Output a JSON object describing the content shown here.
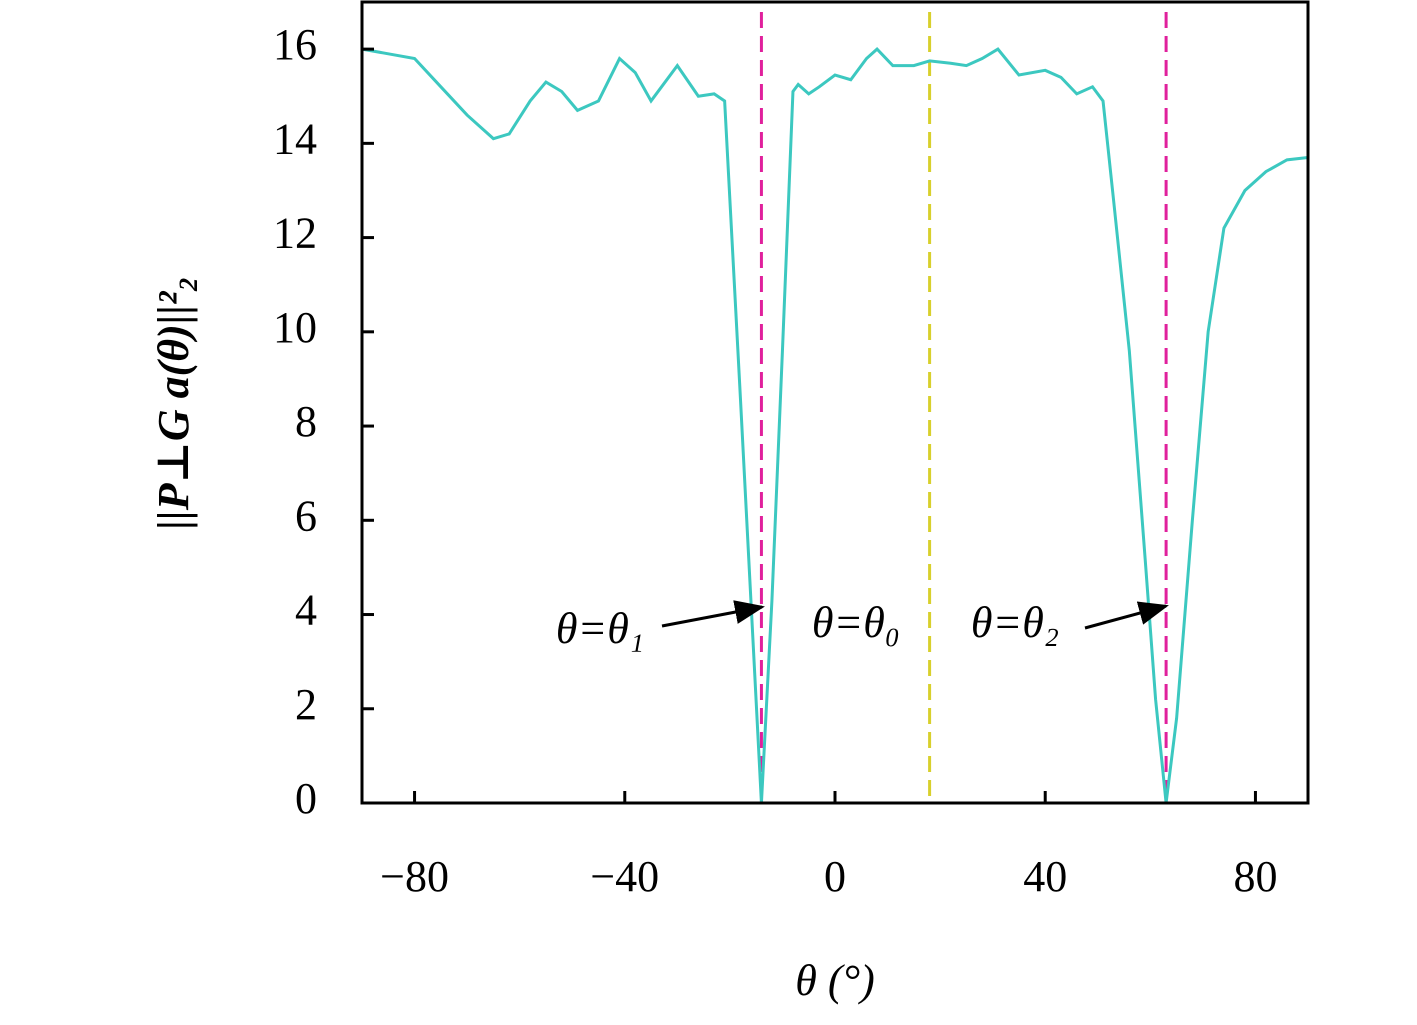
{
  "chart_data": {
    "type": "line",
    "x_label": "θ (°)",
    "y_label": "||P⊥G a(θ)||²₂",
    "xlim": [
      -90,
      90
    ],
    "ylim": [
      0,
      17
    ],
    "xticks": [
      {
        "value": -80,
        "label": "−80"
      },
      {
        "value": -40,
        "label": "−40"
      },
      0,
      40,
      80
    ],
    "yticks": [
      0,
      2,
      4,
      6,
      8,
      10,
      12,
      14,
      16
    ],
    "x": [
      -90,
      -85,
      -80,
      -75,
      -70,
      -65,
      -62,
      -58,
      -55,
      -52,
      -49,
      -45,
      -41,
      -38,
      -35,
      -30,
      -26,
      -23,
      -21,
      -20,
      -18,
      -16,
      -14,
      -12,
      -10,
      -8,
      -7,
      -5,
      -3,
      0,
      3,
      6,
      8,
      11,
      15,
      18,
      22,
      25,
      28,
      31,
      35,
      40,
      43,
      46,
      49,
      51,
      53,
      56,
      59,
      61,
      63,
      65,
      68,
      71,
      74,
      78,
      82,
      86,
      90
    ],
    "series": [
      {
        "color": "#3cc8c0",
        "values": [
          16.0,
          15.9,
          15.8,
          15.2,
          14.6,
          14.1,
          14.2,
          14.9,
          15.3,
          15.1,
          14.7,
          14.9,
          15.8,
          15.5,
          14.9,
          15.65,
          15.0,
          15.05,
          14.9,
          12.8,
          8.6,
          4.3,
          0,
          4.3,
          9.6,
          15.1,
          15.25,
          15.05,
          15.2,
          15.45,
          15.35,
          15.8,
          16.0,
          15.65,
          15.65,
          15.75,
          15.7,
          15.65,
          15.8,
          16.0,
          15.45,
          15.55,
          15.4,
          15.05,
          15.2,
          14.9,
          12.8,
          9.6,
          5.2,
          2.2,
          0,
          1.8,
          6.0,
          10.0,
          12.2,
          13.0,
          13.4,
          13.65,
          13.7
        ]
      }
    ],
    "vlines": [
      {
        "x": -14,
        "color": "#e0209c"
      },
      {
        "x": 18,
        "color": "#d8d02c"
      },
      {
        "x": 63,
        "color": "#e0209c"
      }
    ],
    "annotations": [
      "θ=θ₁",
      "θ=θ₀",
      "θ=θ₂"
    ]
  }
}
